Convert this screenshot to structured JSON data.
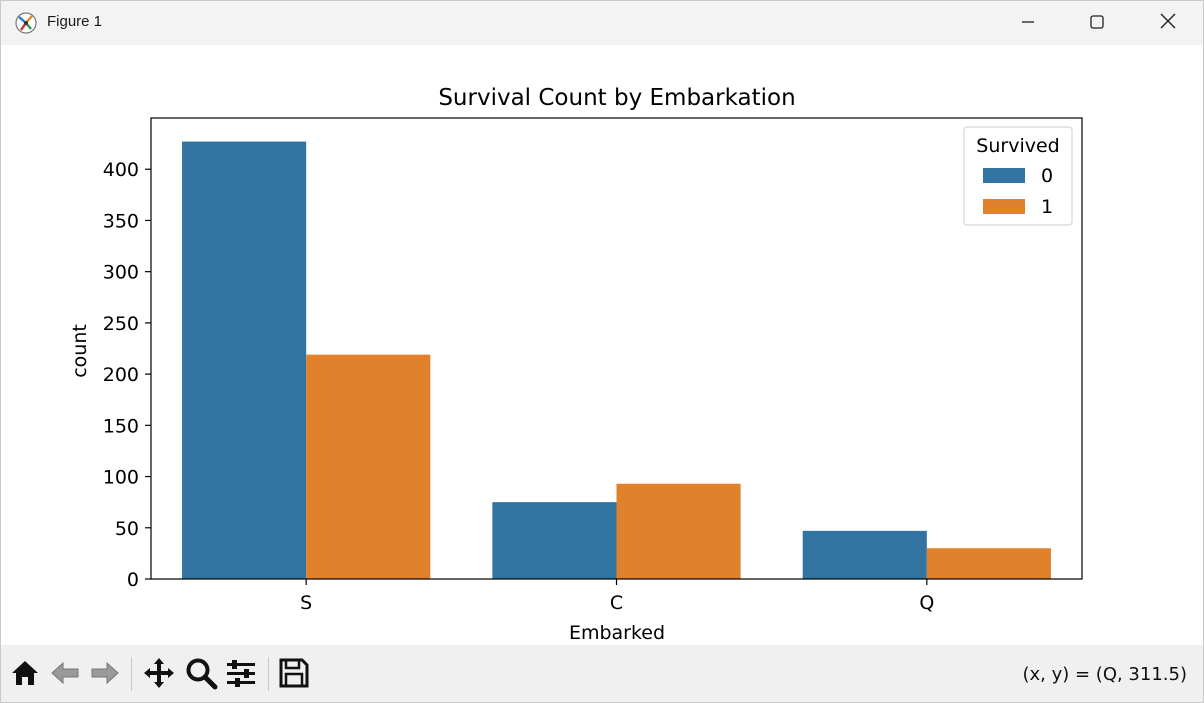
{
  "window": {
    "title": "Figure 1",
    "icons": [
      "app-icon",
      "minimize-icon",
      "maximize-icon",
      "close-icon"
    ]
  },
  "toolbar": {
    "buttons": [
      "home-icon",
      "back-icon",
      "forward-icon",
      "pan-icon",
      "zoom-icon",
      "configure-subplots-icon",
      "save-icon"
    ],
    "coords_text": "(x, y) = (Q, 311.5)"
  },
  "chart_data": {
    "type": "bar",
    "title": "Survival Count by Embarkation",
    "xlabel": "Embarked",
    "ylabel": "count",
    "categories": [
      "S",
      "C",
      "Q"
    ],
    "series": [
      {
        "name": "0",
        "values": [
          427,
          75,
          47
        ],
        "color": "#3274a1"
      },
      {
        "name": "1",
        "values": [
          219,
          93,
          30
        ],
        "color": "#e1812c"
      }
    ],
    "ylim": [
      0,
      450
    ],
    "yticks": [
      0,
      50,
      100,
      150,
      200,
      250,
      300,
      350,
      400
    ],
    "legend": {
      "title": "Survived",
      "placement": "top-right"
    },
    "grid": false
  }
}
